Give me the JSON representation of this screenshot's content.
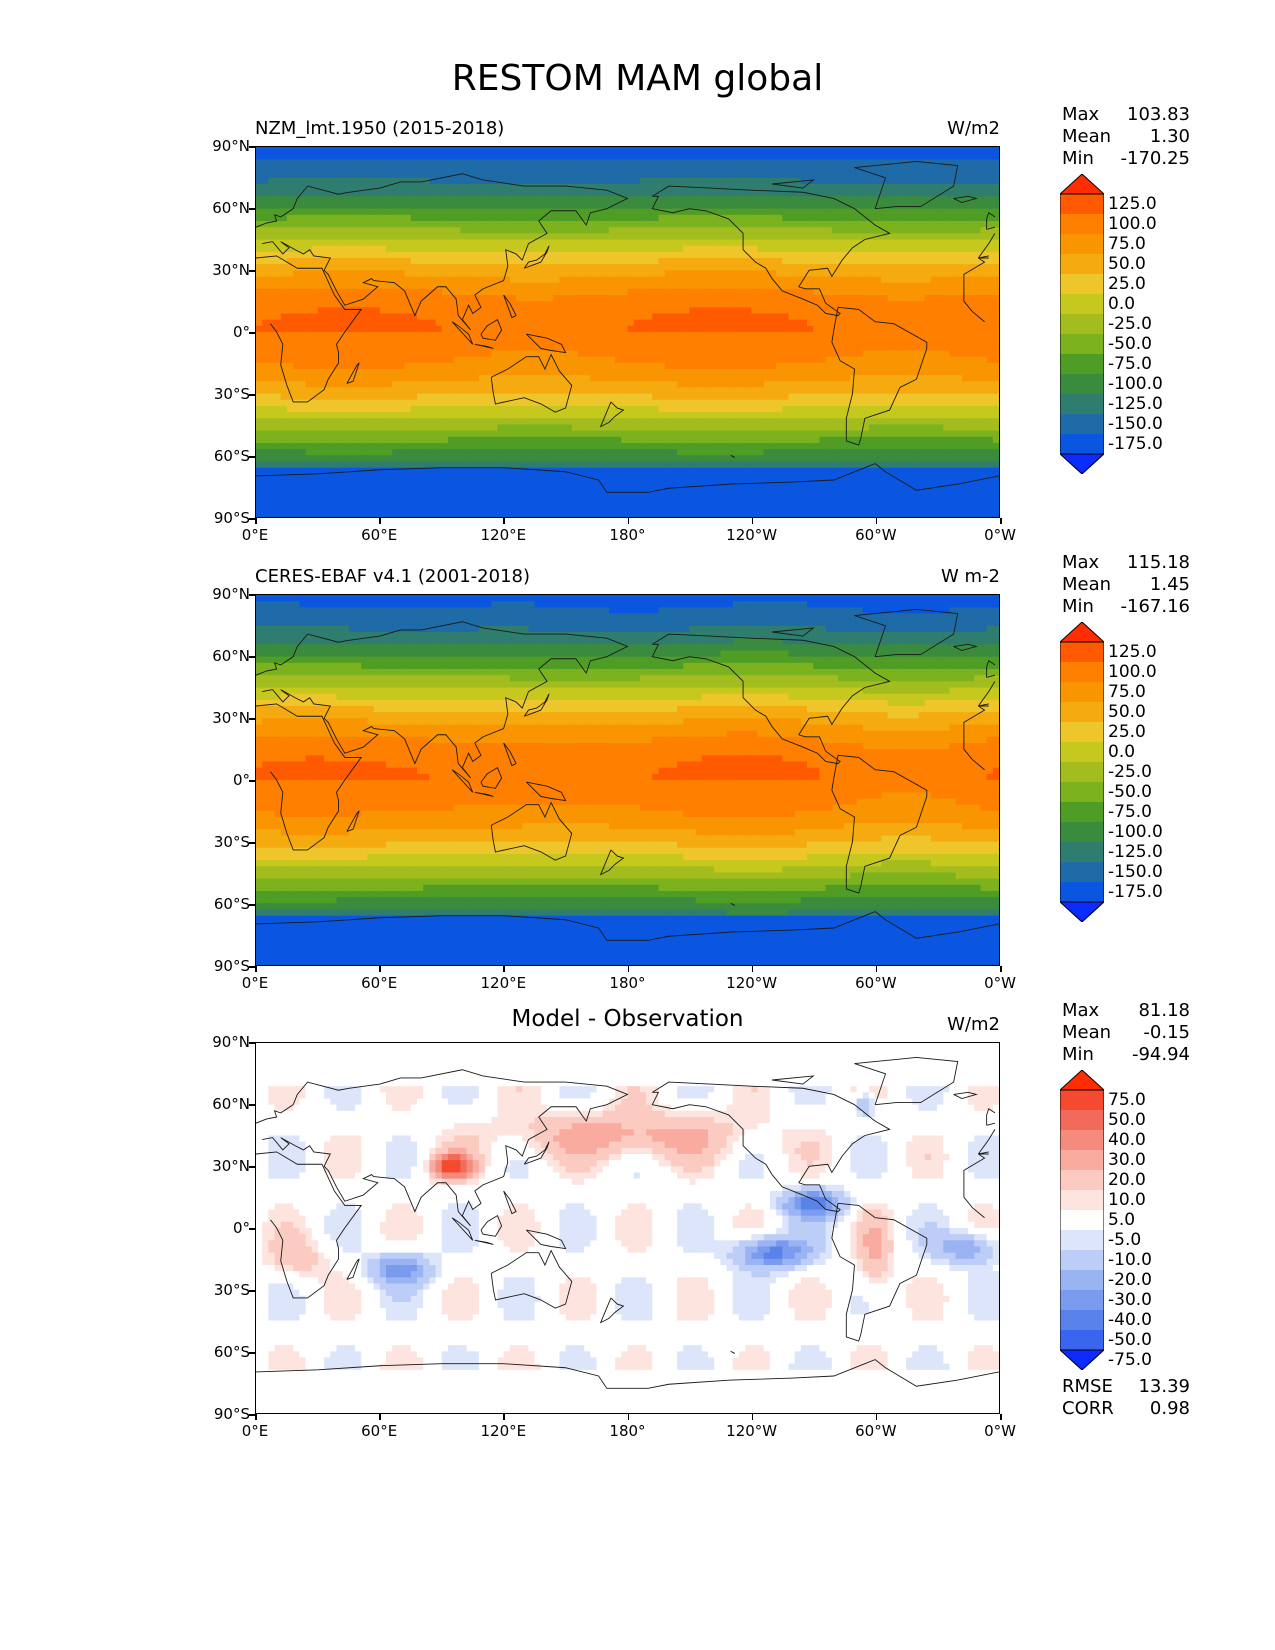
{
  "title": "RESTOM MAM global",
  "panels": [
    {
      "title_left": "NZM_lmt.1950 (2015-2018)",
      "title_right": "W/m2",
      "stats": {
        "max": "103.83",
        "mean": "1.30",
        "min": "-170.25"
      },
      "colorbar": {
        "labels": [
          "125.0",
          "100.0",
          "75.0",
          "50.0",
          "25.0",
          "0.0",
          "-25.0",
          "-50.0",
          "-75.0",
          "-100.0",
          "-125.0",
          "-150.0",
          "-175.0"
        ],
        "colors": [
          "#ff2d00",
          "#ff5a00",
          "#ff7f00",
          "#f99500",
          "#f5ab10",
          "#eec52a",
          "#c6c81e",
          "#a3bc1e",
          "#7bb21e",
          "#4f9d25",
          "#3b8b3f",
          "#2e7d6e",
          "#1f6ba8",
          "#0a56e0",
          "#0b2bff"
        ]
      },
      "field": "full"
    },
    {
      "title_left": "CERES-EBAF v4.1 (2001-2018)",
      "title_right": "W m-2",
      "stats": {
        "max": "115.18",
        "mean": "1.45",
        "min": "-167.16"
      },
      "colorbar": {
        "labels": [
          "125.0",
          "100.0",
          "75.0",
          "50.0",
          "25.0",
          "0.0",
          "-25.0",
          "-50.0",
          "-75.0",
          "-100.0",
          "-125.0",
          "-150.0",
          "-175.0"
        ],
        "colors": [
          "#ff2d00",
          "#ff5a00",
          "#ff7f00",
          "#f99500",
          "#f5ab10",
          "#eec52a",
          "#c6c81e",
          "#a3bc1e",
          "#7bb21e",
          "#4f9d25",
          "#3b8b3f",
          "#2e7d6e",
          "#1f6ba8",
          "#0a56e0",
          "#0b2bff"
        ]
      },
      "field": "full"
    },
    {
      "title_center": "Model - Observation",
      "title_right": "W/m2",
      "stats": {
        "max": "81.18",
        "mean": "-0.15",
        "min": "-94.94"
      },
      "colorbar": {
        "labels": [
          "75.0",
          "50.0",
          "40.0",
          "30.0",
          "20.0",
          "10.0",
          "5.0",
          "-5.0",
          "-10.0",
          "-20.0",
          "-30.0",
          "-40.0",
          "-50.0",
          "-75.0"
        ],
        "colors": [
          "#ff2d00",
          "#f54a30",
          "#f26a5a",
          "#f48b7c",
          "#f8ab9e",
          "#fbcac0",
          "#fde4de",
          "#ffffff",
          "#dde5fb",
          "#bccdf7",
          "#9ab3f2",
          "#7a9bee",
          "#5a82eb",
          "#3a65ee",
          "#0b2bff"
        ]
      },
      "field": "diff",
      "rmse": "13.39",
      "corr": "0.98"
    }
  ],
  "stat_labels": {
    "max": "Max",
    "mean": "Mean",
    "min": "Min",
    "rmse": "RMSE",
    "corr": "CORR"
  },
  "axes": {
    "y_ticks": [
      "90°N",
      "60°N",
      "30°N",
      "0°",
      "30°S",
      "60°S",
      "90°S"
    ],
    "x_ticks": [
      "0°E",
      "60°E",
      "120°E",
      "180°",
      "120°W",
      "60°W",
      "0°W"
    ]
  },
  "chart_data": [
    {
      "type": "heatmap",
      "title": "NZM_lmt.1950 (2015-2018)",
      "units": "W/m2",
      "x": [
        "0°E",
        "60°E",
        "120°E",
        "180°",
        "120°W",
        "60°W",
        "0°W"
      ],
      "y": [
        "90°N",
        "60°N",
        "30°N",
        "0°",
        "30°S",
        "60°S",
        "90°S"
      ],
      "color_levels": [
        -175,
        -150,
        -125,
        -100,
        -75,
        -50,
        -25,
        0,
        25,
        50,
        75,
        100,
        125
      ],
      "max": 103.83,
      "mean": 1.3,
      "min": -170.25
    },
    {
      "type": "heatmap",
      "title": "CERES-EBAF v4.1 (2001-2018)",
      "units": "W m-2",
      "x": [
        "0°E",
        "60°E",
        "120°E",
        "180°",
        "120°W",
        "60°W",
        "0°W"
      ],
      "y": [
        "90°N",
        "60°N",
        "30°N",
        "0°",
        "30°S",
        "60°S",
        "90°S"
      ],
      "color_levels": [
        -175,
        -150,
        -125,
        -100,
        -75,
        -50,
        -25,
        0,
        25,
        50,
        75,
        100,
        125
      ],
      "max": 115.18,
      "mean": 1.45,
      "min": -167.16
    },
    {
      "type": "heatmap",
      "title": "Model - Observation",
      "units": "W/m2",
      "x": [
        "0°E",
        "60°E",
        "120°E",
        "180°",
        "120°W",
        "60°W",
        "0°W"
      ],
      "y": [
        "90°N",
        "60°N",
        "30°N",
        "0°",
        "30°S",
        "60°S",
        "90°S"
      ],
      "color_levels": [
        -75,
        -50,
        -40,
        -30,
        -20,
        -10,
        -5,
        5,
        10,
        20,
        30,
        40,
        50,
        75
      ],
      "max": 81.18,
      "mean": -0.15,
      "min": -94.94,
      "rmse": 13.39,
      "corr": 0.98
    }
  ]
}
